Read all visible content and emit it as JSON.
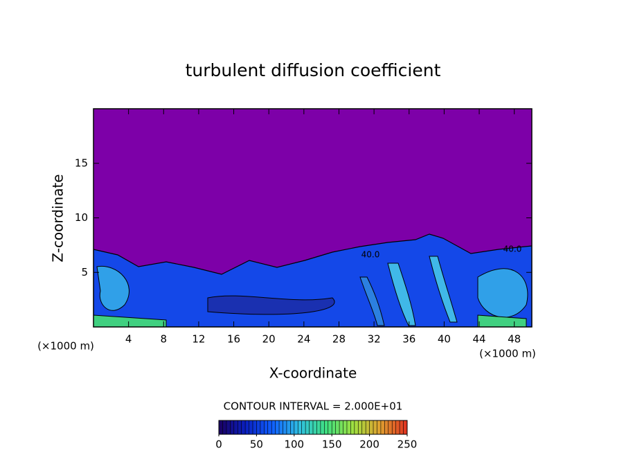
{
  "chart_data": {
    "type": "contour",
    "title": "turbulent diffusion coefficient",
    "x_label": "X-coordinate",
    "y_label": "Z-coordinate",
    "x_unit": "(×1000 m)",
    "y_unit": "(×1000 m)",
    "xlim": [
      0,
      50
    ],
    "ylim": [
      0,
      20
    ],
    "xticks": [
      4,
      8,
      12,
      16,
      20,
      24,
      28,
      32,
      36,
      40,
      44,
      48
    ],
    "yticks": [
      5,
      10,
      15
    ],
    "background_color": "#7d00a8",
    "contour_labels": [
      "40.0",
      "40.0"
    ],
    "contour_interval": "CONTOUR INTERVAL = 2.000E+01",
    "colorbar": {
      "lim": [
        0,
        250
      ],
      "ticks": [
        0,
        50,
        100,
        150,
        200,
        250
      ],
      "colors": [
        "#1a0060",
        "#0a20c0",
        "#1060ff",
        "#30c0e0",
        "#40e080",
        "#a0e040",
        "#e0a030",
        "#e03020"
      ]
    }
  }
}
